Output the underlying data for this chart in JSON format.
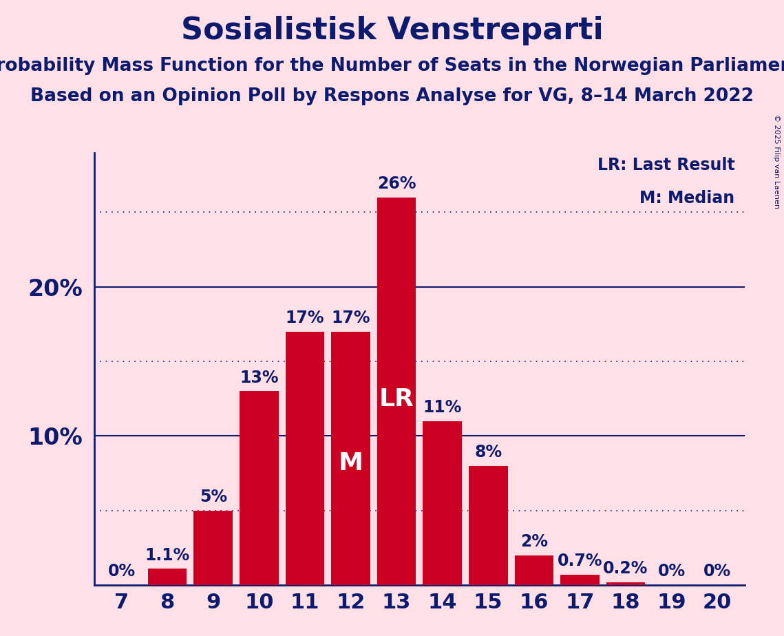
{
  "title": "Sosialistisk Venstreparti",
  "subtitle1": "Probability Mass Function for the Number of Seats in the Norwegian Parliament",
  "subtitle2": "Based on an Opinion Poll by Respons Analyse for VG, 8–14 March 2022",
  "copyright": "© 2025 Filip van Laenen",
  "categories": [
    7,
    8,
    9,
    10,
    11,
    12,
    13,
    14,
    15,
    16,
    17,
    18,
    19,
    20
  ],
  "values": [
    0.0,
    1.1,
    5.0,
    13.0,
    17.0,
    17.0,
    26.0,
    11.0,
    8.0,
    2.0,
    0.7,
    0.2,
    0.0,
    0.0
  ],
  "labels": [
    "0%",
    "1.1%",
    "5%",
    "13%",
    "17%",
    "17%",
    "26%",
    "11%",
    "8%",
    "2%",
    "0.7%",
    "0.2%",
    "0%",
    "0%"
  ],
  "bar_color": "#CC0022",
  "background_color": "#FFE0E6",
  "title_color": "#0D1B6E",
  "axis_color": "#0D1B6E",
  "bar_label_color_outside": "#0D1B6E",
  "bar_label_color_inside": "#FFFFFF",
  "LR_seat": 13,
  "M_seat": 12,
  "yticks_solid": [
    10,
    20
  ],
  "yticks_dotted": [
    5,
    15,
    25
  ],
  "ylim": [
    0,
    29
  ],
  "legend_LR": "LR: Last Result",
  "legend_M": "M: Median",
  "title_fontsize": 32,
  "subtitle_fontsize": 19,
  "label_fontsize": 17,
  "tick_fontsize": 22,
  "ytick_fontsize": 24,
  "marker_fontsize": 26,
  "legend_fontsize": 17
}
